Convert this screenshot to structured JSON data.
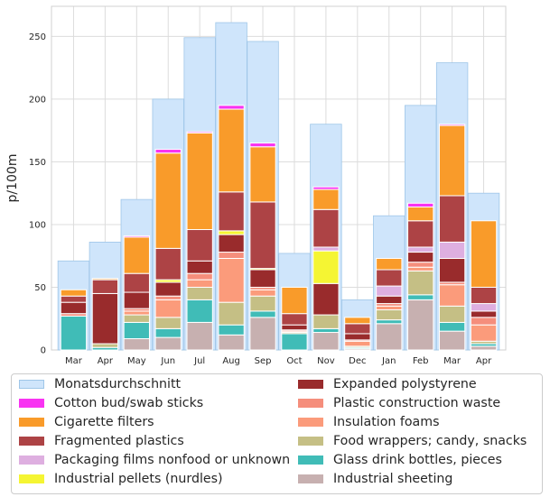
{
  "chart_data": {
    "type": "bar",
    "stacked": true,
    "title": "",
    "xlabel": "",
    "ylabel": "p/100m",
    "ylim": [
      0,
      274
    ],
    "yticks": [
      0,
      50,
      100,
      150,
      200,
      250
    ],
    "grid": true,
    "legend_position": "bottom",
    "categories": [
      "Mar",
      "Apr",
      "May",
      "Jun",
      "Jul",
      "Aug",
      "Sep",
      "Oct",
      "Nov",
      "Dec",
      "Jan",
      "Feb",
      "Mar",
      "Apr"
    ],
    "average": {
      "name": "Monatsdurchschnitt",
      "color": "#cfe5fb",
      "edge": "#9fc6e8",
      "values": [
        71,
        86,
        120,
        200,
        249,
        261,
        246,
        77,
        180,
        40,
        107,
        195,
        229,
        125
      ]
    },
    "series": [
      {
        "name": "Industrial sheeting",
        "color": "#c7b0b0",
        "values": [
          0,
          0,
          9,
          10,
          22,
          12,
          26,
          0,
          14,
          1,
          21,
          40,
          15,
          3
        ]
      },
      {
        "name": "Glass drink bottles, pieces",
        "color": "#40bcb7",
        "values": [
          27,
          2,
          13,
          7,
          18,
          8,
          5,
          13,
          3,
          1,
          3,
          4,
          7,
          2
        ]
      },
      {
        "name": "Food wrappers; candy, snacks",
        "color": "#c5bf85",
        "values": [
          0,
          3,
          6,
          9,
          10,
          18,
          12,
          1,
          11,
          1,
          8,
          19,
          13,
          2
        ]
      },
      {
        "name": "Insulation foams",
        "color": "#fb9b7b",
        "values": [
          0,
          0,
          3,
          14,
          6,
          35,
          5,
          1,
          0,
          4,
          3,
          3,
          17,
          13
        ]
      },
      {
        "name": "Plastic construction waste",
        "color": "#f58e7c",
        "values": [
          2,
          0,
          2,
          3,
          5,
          5,
          2,
          1,
          0,
          1,
          2,
          4,
          2,
          6
        ]
      },
      {
        "name": "Expanded polystyrene",
        "color": "#992b2c",
        "values": [
          9,
          40,
          13,
          11,
          10,
          14,
          14,
          4,
          25,
          5,
          6,
          8,
          19,
          5
        ]
      },
      {
        "name": "Industrial pellets (nurdles)",
        "color": "#f5f533",
        "values": [
          0,
          0,
          0,
          2,
          0,
          3,
          1,
          0,
          26,
          0,
          0,
          0,
          0,
          0
        ]
      },
      {
        "name": "Packaging films nonfood or unknown",
        "color": "#deafe0",
        "values": [
          0,
          0,
          0,
          0,
          0,
          0,
          0,
          0,
          3,
          0,
          8,
          4,
          13,
          6
        ]
      },
      {
        "name": "Fragmented plastics",
        "color": "#ad4345",
        "values": [
          5,
          11,
          15,
          25,
          25,
          31,
          53,
          9,
          30,
          8,
          13,
          21,
          37,
          13
        ]
      },
      {
        "name": "Cigarette filters",
        "color": "#f99b2a",
        "values": [
          5,
          1,
          29,
          76,
          77,
          66,
          44,
          21,
          16,
          5,
          9,
          11,
          56,
          53
        ]
      },
      {
        "name": "Cotton bud/swab sticks",
        "color": "#f833f2",
        "values": [
          0,
          0,
          1,
          3,
          1,
          3,
          3,
          0,
          2,
          0,
          0,
          3,
          1,
          0
        ]
      }
    ],
    "legend_entries": [
      {
        "label": "Monatsdurchschnitt",
        "color": "#cfe5fb"
      },
      {
        "label": "Cotton bud/swab sticks",
        "color": "#f833f2"
      },
      {
        "label": "Cigarette filters",
        "color": "#f99b2a"
      },
      {
        "label": "Fragmented plastics",
        "color": "#ad4345"
      },
      {
        "label": "Packaging films nonfood or unknown",
        "color": "#deafe0"
      },
      {
        "label": "Industrial pellets (nurdles)",
        "color": "#f5f533"
      },
      {
        "label": "Expanded polystyrene",
        "color": "#992b2c"
      },
      {
        "label": "Plastic construction waste",
        "color": "#f58e7c"
      },
      {
        "label": "Insulation foams",
        "color": "#fb9b7b"
      },
      {
        "label": "Food wrappers; candy, snacks",
        "color": "#c5bf85"
      },
      {
        "label": "Glass drink bottles, pieces",
        "color": "#40bcb7"
      },
      {
        "label": "Industrial sheeting",
        "color": "#c7b0b0"
      }
    ]
  }
}
